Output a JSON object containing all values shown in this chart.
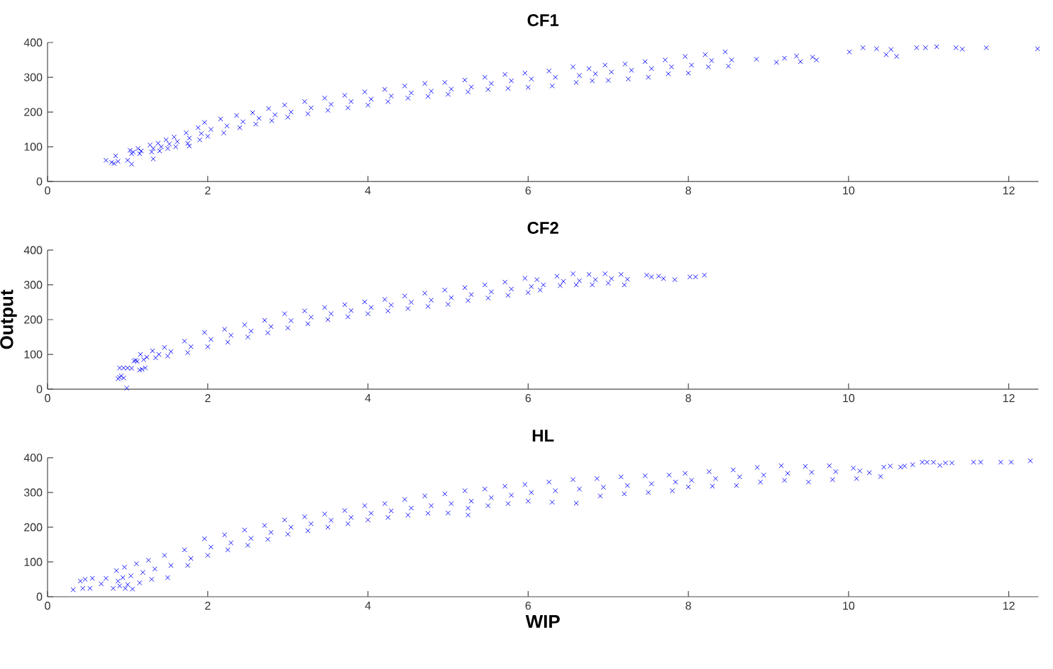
{
  "chart_data": [
    {
      "type": "scatter",
      "title": "CF1",
      "color": "#0000ff",
      "marker": "cross",
      "xlim": [
        0,
        12.37
      ],
      "ylim": [
        0,
        400
      ],
      "xticks": [
        0,
        2,
        4,
        6,
        8,
        10,
        12
      ],
      "yticks": [
        0,
        100,
        200,
        300,
        400
      ],
      "x": [
        0.73,
        0.8,
        0.83,
        0.85,
        0.88,
        1.0,
        1.05,
        1.32,
        1.77,
        1.05,
        1.07,
        1.03,
        1.15,
        1.17,
        1.13,
        1.3,
        1.32,
        1.28,
        1.4,
        1.42,
        1.38,
        1.5,
        1.52,
        1.48,
        1.6,
        1.62,
        1.58,
        1.75,
        1.77,
        1.73,
        1.9,
        1.92,
        1.88,
        2.0,
        2.04,
        1.96,
        2.2,
        2.24,
        2.16,
        2.4,
        2.44,
        2.36,
        2.6,
        2.64,
        2.56,
        2.8,
        2.84,
        2.76,
        3.0,
        3.04,
        2.96,
        3.25,
        3.29,
        3.21,
        3.5,
        3.54,
        3.46,
        3.75,
        3.79,
        3.71,
        4.0,
        4.04,
        3.96,
        4.25,
        4.29,
        4.21,
        4.5,
        4.54,
        4.46,
        4.75,
        4.79,
        4.71,
        5.0,
        5.04,
        4.96,
        5.25,
        5.29,
        5.21,
        5.5,
        5.54,
        5.46,
        5.75,
        5.79,
        5.71,
        6.0,
        6.04,
        5.96,
        6.3,
        6.34,
        6.26,
        6.6,
        6.64,
        6.56,
        6.8,
        6.84,
        6.76,
        7.0,
        7.04,
        6.96,
        7.25,
        7.29,
        7.21,
        7.5,
        7.54,
        7.46,
        7.75,
        7.79,
        7.71,
        8.0,
        8.04,
        7.96,
        8.25,
        8.29,
        8.21,
        8.5,
        8.54,
        8.46,
        8.85,
        9.1,
        9.2,
        9.35,
        9.4,
        9.55,
        9.6,
        10.01,
        10.18,
        10.35,
        10.47,
        10.53,
        10.6,
        10.85,
        10.96,
        11.1,
        11.34,
        11.42,
        11.72,
        12.36
      ],
      "values": [
        61,
        55,
        52,
        74,
        58,
        61,
        50,
        65,
        102,
        80,
        85,
        90,
        80,
        88,
        95,
        85,
        95,
        105,
        88,
        100,
        110,
        95,
        108,
        120,
        100,
        115,
        128,
        110,
        125,
        140,
        120,
        138,
        155,
        130,
        150,
        170,
        140,
        160,
        180,
        155,
        172,
        190,
        165,
        182,
        198,
        175,
        192,
        210,
        185,
        200,
        220,
        195,
        212,
        230,
        205,
        222,
        240,
        212,
        230,
        248,
        220,
        237,
        258,
        230,
        246,
        265,
        240,
        255,
        275,
        245,
        260,
        282,
        251,
        266,
        285,
        258,
        272,
        292,
        265,
        282,
        300,
        268,
        290,
        308,
        271,
        295,
        312,
        275,
        300,
        318,
        285,
        305,
        330,
        290,
        310,
        325,
        291,
        315,
        335,
        295,
        320,
        338,
        300,
        325,
        345,
        310,
        330,
        350,
        312,
        335,
        360,
        330,
        348,
        365,
        332,
        350,
        373,
        352,
        343,
        355,
        361,
        345,
        358,
        350,
        373,
        385,
        382,
        365,
        380,
        360,
        385,
        385,
        388,
        385,
        381,
        385,
        382
      ]
    },
    {
      "type": "scatter",
      "title": "CF2",
      "ylabel": "Output",
      "color": "#0000ff",
      "marker": "cross",
      "xlim": [
        0,
        12.37
      ],
      "ylim": [
        0,
        400
      ],
      "xticks": [
        0,
        2,
        4,
        6,
        8,
        10,
        12
      ],
      "yticks": [
        0,
        100,
        200,
        300,
        400
      ],
      "x": [
        0.88,
        0.9,
        0.92,
        0.95,
        0.9,
        0.95,
        1.0,
        1.05,
        0.99,
        1.08,
        1.1,
        1.12,
        1.15,
        1.18,
        1.22,
        1.2,
        1.24,
        1.16,
        1.35,
        1.39,
        1.31,
        1.5,
        1.54,
        1.46,
        1.75,
        1.79,
        1.71,
        2.0,
        2.04,
        1.96,
        2.25,
        2.29,
        2.21,
        2.5,
        2.54,
        2.46,
        2.75,
        2.79,
        2.71,
        3.0,
        3.04,
        2.96,
        3.25,
        3.29,
        3.21,
        3.5,
        3.54,
        3.46,
        3.75,
        3.79,
        3.71,
        4.0,
        4.04,
        3.96,
        4.25,
        4.29,
        4.21,
        4.5,
        4.54,
        4.46,
        4.75,
        4.79,
        4.71,
        5.0,
        5.04,
        4.96,
        5.25,
        5.29,
        5.21,
        5.5,
        5.54,
        5.46,
        5.75,
        5.79,
        5.71,
        6.0,
        6.04,
        5.96,
        6.15,
        6.19,
        6.11,
        6.4,
        6.44,
        6.36,
        6.6,
        6.64,
        6.56,
        6.8,
        6.84,
        6.76,
        7.0,
        7.04,
        6.96,
        7.2,
        7.24,
        7.16,
        7.48,
        7.54,
        7.63,
        7.69,
        7.83,
        8.02,
        8.09,
        8.2
      ],
      "values": [
        30,
        34,
        38,
        32,
        61,
        61,
        61,
        60,
        3,
        81,
        83,
        80,
        55,
        57,
        61,
        85,
        92,
        100,
        90,
        100,
        110,
        95,
        108,
        120,
        105,
        122,
        138,
        122,
        143,
        163,
        135,
        155,
        172,
        150,
        167,
        185,
        162,
        180,
        198,
        176,
        197,
        217,
        188,
        207,
        225,
        200,
        217,
        235,
        208,
        226,
        243,
        217,
        235,
        251,
        225,
        242,
        258,
        232,
        250,
        268,
        238,
        256,
        276,
        244,
        263,
        285,
        255,
        272,
        292,
        262,
        280,
        300,
        270,
        288,
        308,
        278,
        295,
        319,
        285,
        300,
        315,
        298,
        310,
        325,
        300,
        312,
        332,
        300,
        315,
        330,
        305,
        318,
        332,
        300,
        316,
        330,
        328,
        323,
        325,
        318,
        315,
        323,
        323,
        328
      ]
    },
    {
      "type": "scatter",
      "title": "HL",
      "xlabel": "WIP",
      "color": "#0000ff",
      "marker": "cross",
      "xlim": [
        0,
        12.37
      ],
      "ylim": [
        0,
        400
      ],
      "xticks": [
        0,
        2,
        4,
        6,
        8,
        10,
        12
      ],
      "yticks": [
        0,
        100,
        200,
        300,
        400
      ],
      "x": [
        0.32,
        0.41,
        0.47,
        0.56,
        0.44,
        0.53,
        0.67,
        0.73,
        0.82,
        0.88,
        0.97,
        1.06,
        5.25,
        0.9,
        0.94,
        0.86,
        1.0,
        1.04,
        0.96,
        1.15,
        1.19,
        1.11,
        1.3,
        1.34,
        1.26,
        1.5,
        1.54,
        1.46,
        1.75,
        1.79,
        1.71,
        2.0,
        2.04,
        1.96,
        2.25,
        2.29,
        2.21,
        2.5,
        2.54,
        2.46,
        2.75,
        2.79,
        2.71,
        3.0,
        3.04,
        2.96,
        3.25,
        3.29,
        3.21,
        3.5,
        3.54,
        3.46,
        3.75,
        3.79,
        3.71,
        4.0,
        4.04,
        3.96,
        4.25,
        4.29,
        4.21,
        4.5,
        4.54,
        4.46,
        4.75,
        4.79,
        4.71,
        5.0,
        5.04,
        4.96,
        5.25,
        5.29,
        5.21,
        5.5,
        5.54,
        5.46,
        5.75,
        5.79,
        5.71,
        6.0,
        6.04,
        5.96,
        6.3,
        6.34,
        6.26,
        6.6,
        6.64,
        6.56,
        6.9,
        6.94,
        6.86,
        7.2,
        7.24,
        7.16,
        7.5,
        7.54,
        7.46,
        7.8,
        7.84,
        7.76,
        8.0,
        8.04,
        7.96,
        8.3,
        8.34,
        8.26,
        8.6,
        8.64,
        8.56,
        8.9,
        8.94,
        8.86,
        9.2,
        9.24,
        9.16,
        9.5,
        9.54,
        9.46,
        9.8,
        9.84,
        9.76,
        10.1,
        10.14,
        10.06,
        10.26,
        10.4,
        10.44,
        10.52,
        10.65,
        10.7,
        10.8,
        10.92,
        10.98,
        11.06,
        11.14,
        11.21,
        11.29,
        11.56,
        11.65,
        11.9,
        12.03,
        12.27
      ],
      "values": [
        20,
        45,
        50,
        53,
        24,
        24,
        37,
        53,
        24,
        45,
        24,
        22,
        235,
        31,
        55,
        75,
        35,
        60,
        85,
        40,
        70,
        95,
        50,
        80,
        105,
        55,
        90,
        119,
        90,
        110,
        135,
        119,
        143,
        167,
        135,
        155,
        178,
        148,
        168,
        192,
        165,
        185,
        205,
        180,
        200,
        221,
        190,
        210,
        230,
        200,
        220,
        238,
        210,
        228,
        248,
        221,
        240,
        262,
        228,
        247,
        268,
        235,
        255,
        280,
        240,
        262,
        290,
        241,
        268,
        296,
        255,
        275,
        305,
        262,
        285,
        310,
        268,
        292,
        318,
        275,
        300,
        323,
        272,
        305,
        330,
        269,
        310,
        337,
        290,
        315,
        340,
        296,
        320,
        345,
        300,
        325,
        348,
        305,
        330,
        350,
        316,
        335,
        355,
        318,
        340,
        360,
        320,
        345,
        365,
        330,
        350,
        372,
        335,
        355,
        377,
        330,
        358,
        375,
        337,
        360,
        377,
        340,
        362,
        370,
        357,
        346,
        373,
        376,
        373,
        376,
        380,
        387,
        387,
        387,
        378,
        385,
        385,
        387,
        387,
        387,
        387,
        391
      ]
    }
  ]
}
